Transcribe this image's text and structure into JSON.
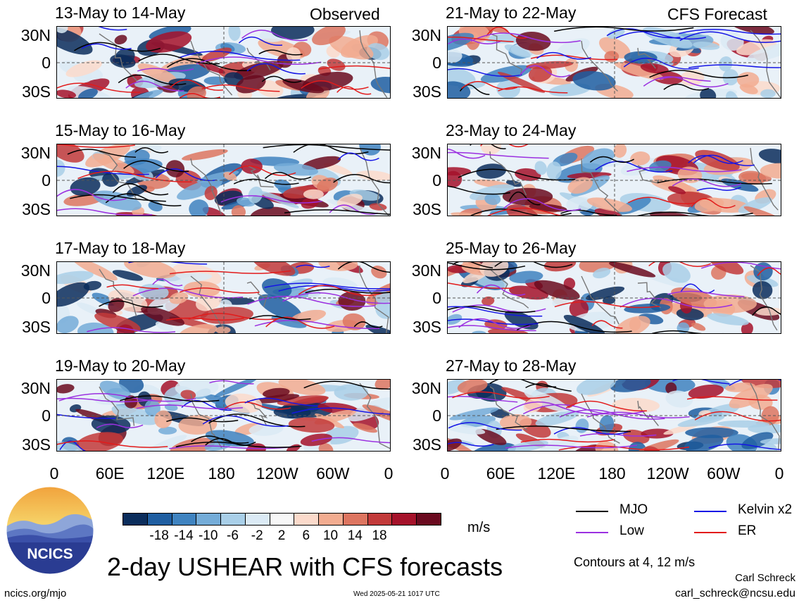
{
  "header": {
    "observed_label": "Observed",
    "forecast_label": "CFS Forecast"
  },
  "panels": [
    {
      "title": "13-May to 14-May",
      "seed": 11
    },
    {
      "title": "21-May to 22-May",
      "seed": 23
    },
    {
      "title": "15-May to 16-May",
      "seed": 37
    },
    {
      "title": "23-May to 24-May",
      "seed": 41
    },
    {
      "title": "17-May to 18-May",
      "seed": 53
    },
    {
      "title": "25-May to 26-May",
      "seed": 67
    },
    {
      "title": "19-May to 20-May",
      "seed": 79
    },
    {
      "title": "27-May to 28-May",
      "seed": 83
    }
  ],
  "lat_labels": [
    "30N",
    "0",
    "30S"
  ],
  "lon_labels": [
    "0",
    "60E",
    "120E",
    "180",
    "120W",
    "60W",
    "0"
  ],
  "colorbar": {
    "unit": "m/s",
    "colors": [
      "#0b2d5c",
      "#1f5ea1",
      "#3f83c0",
      "#74acd8",
      "#a9cfe8",
      "#dbeaf5",
      "#f7f7f7",
      "#fbdacb",
      "#f2ac90",
      "#dd7560",
      "#c23a3a",
      "#a5122a",
      "#6a0a1f"
    ],
    "labels": [
      "-18",
      "-14",
      "-10",
      "-6",
      "-2",
      "2",
      "6",
      "10",
      "14",
      "18"
    ]
  },
  "legend": {
    "items": [
      {
        "label": "MJO",
        "color": "#000000"
      },
      {
        "label": "Kelvin x2",
        "color": "#1515e6"
      },
      {
        "label": "Low",
        "color": "#9b30e0"
      },
      {
        "label": "ER",
        "color": "#e21b1b"
      }
    ],
    "contours_note": "Contours at 4, 12 m/s"
  },
  "chart_data": {
    "type": "heatmap",
    "title": "2-day USHEAR with CFS forecasts",
    "variable": "USHEAR",
    "unit": "m/s",
    "x_ticks": [
      "0",
      "60E",
      "120E",
      "180",
      "120W",
      "60W",
      "0"
    ],
    "y_ticks": [
      "30N",
      "0",
      "30S"
    ],
    "color_levels": [
      -18,
      -14,
      -10,
      -6,
      -2,
      2,
      6,
      10,
      14,
      18
    ],
    "contour_levels_ms": [
      4,
      12
    ],
    "contour_series": [
      "MJO",
      "Kelvin x2",
      "Low",
      "ER"
    ],
    "panels_observed": [
      "13-May to 14-May",
      "15-May to 16-May",
      "17-May to 18-May",
      "19-May to 20-May"
    ],
    "panels_forecast": [
      "21-May to 22-May",
      "23-May to 24-May",
      "25-May to 26-May",
      "27-May to 28-May"
    ]
  },
  "footer": {
    "logo_text": "NCICS",
    "title": "2-day USHEAR with CFS forecasts",
    "url": "ncics.org/mjo",
    "timestamp": "Wed 2025-05-21 1017 UTC",
    "author": "Carl Schreck",
    "email": "carl_schreck@ncsu.edu"
  }
}
